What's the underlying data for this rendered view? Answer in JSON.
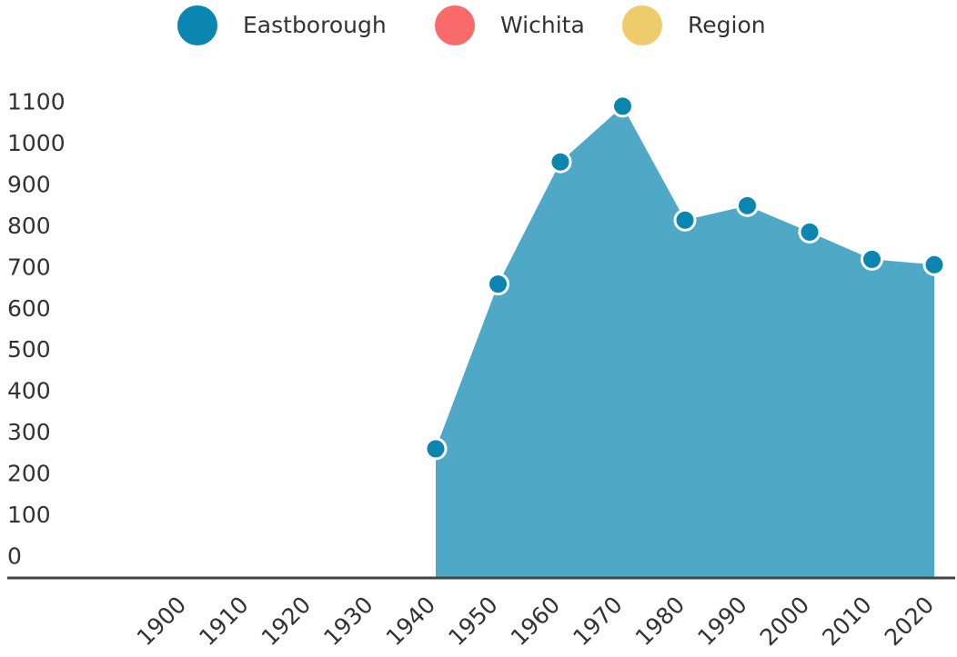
{
  "chart_data": {
    "type": "area",
    "categories": [
      "1900",
      "1910",
      "1920",
      "1930",
      "1940",
      "1950",
      "1960",
      "1970",
      "1980",
      "1990",
      "2000",
      "2010",
      "2020"
    ],
    "series": [
      {
        "name": "Eastborough",
        "color": "#0a86b0",
        "fill": "#4fa8c6",
        "values": [
          null,
          null,
          null,
          null,
          263,
          662,
          958,
          1093,
          817,
          852,
          788,
          722,
          709
        ]
      },
      {
        "name": "Wichita",
        "color": "#f96b6b",
        "values": [
          null,
          null,
          null,
          null,
          null,
          null,
          null,
          null,
          null,
          null,
          null,
          null,
          null
        ]
      },
      {
        "name": "Region",
        "color": "#eecb6b",
        "values": [
          null,
          null,
          null,
          null,
          null,
          null,
          null,
          null,
          null,
          null,
          null,
          null,
          null
        ]
      }
    ],
    "ylim": [
      -50,
      1150
    ],
    "yticks": [
      0,
      100,
      200,
      300,
      400,
      500,
      600,
      700,
      800,
      900,
      1000,
      1100
    ],
    "legend": "top",
    "grid": false
  }
}
